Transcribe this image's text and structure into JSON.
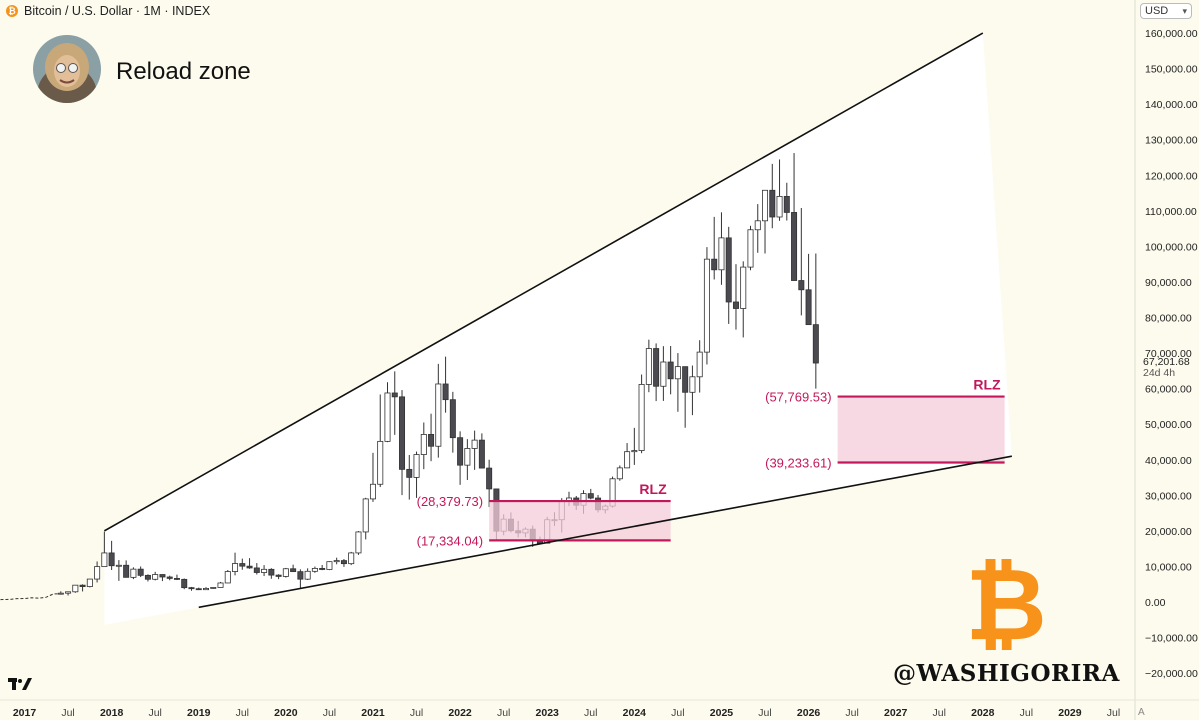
{
  "header": {
    "coin_glyph": "₿",
    "title": "Bitcoin / U.S. Dollar · 1M · INDEX"
  },
  "subtitle": "Reload zone",
  "avatar": {
    "icon": "profile-avatar"
  },
  "currency_selector": {
    "value": "USD"
  },
  "last_price": {
    "value": "67,201.68",
    "countdown": "24d 4h"
  },
  "watermark": {
    "handle": "@WASHIGORIRA",
    "logo": "bitcoin-logo"
  },
  "auto_scale_label": "A",
  "colors": {
    "background": "#fdfbee",
    "zone_fill": "#f4ccd9",
    "zone_line": "#c2185b",
    "zone_text": "#c2185b",
    "bull": "#ffffff",
    "bear": "#4a4a50",
    "logo": "#f7931a"
  },
  "chart_data": {
    "type": "candlestick",
    "title": "Bitcoin / U.S. Dollar · 1M · INDEX",
    "subtitle": "Reload zone",
    "ylim": [
      -25000,
      165000
    ],
    "xlim": [
      "2016-09",
      "2030-02"
    ],
    "y_ticks": [
      {
        "v": 160000,
        "label": "160,000.00"
      },
      {
        "v": 150000,
        "label": "150,000.00"
      },
      {
        "v": 140000,
        "label": "140,000.00"
      },
      {
        "v": 130000,
        "label": "130,000.00"
      },
      {
        "v": 120000,
        "label": "120,000.00"
      },
      {
        "v": 110000,
        "label": "110,000.00"
      },
      {
        "v": 100000,
        "label": "100,000.00"
      },
      {
        "v": 90000,
        "label": "90,000.00"
      },
      {
        "v": 80000,
        "label": "80,000.00"
      },
      {
        "v": 70000,
        "label": "70,000.00"
      },
      {
        "v": 60000,
        "label": "60,000.00"
      },
      {
        "v": 50000,
        "label": "50,000.00"
      },
      {
        "v": 40000,
        "label": "40,000.00"
      },
      {
        "v": 30000,
        "label": "30,000.00"
      },
      {
        "v": 20000,
        "label": "20,000.00"
      },
      {
        "v": 10000,
        "label": "10,000.00"
      },
      {
        "v": 0,
        "label": "0.00"
      },
      {
        "v": -10000,
        "label": "−10,000.00"
      },
      {
        "v": -20000,
        "label": "−20,000.00"
      }
    ],
    "x_ticks": [
      {
        "t": "2017-01",
        "label": "2017",
        "major": true
      },
      {
        "t": "2017-07",
        "label": "Jul",
        "major": false
      },
      {
        "t": "2018-01",
        "label": "2018",
        "major": true
      },
      {
        "t": "2018-07",
        "label": "Jul",
        "major": false
      },
      {
        "t": "2019-01",
        "label": "2019",
        "major": true
      },
      {
        "t": "2019-07",
        "label": "Jul",
        "major": false
      },
      {
        "t": "2020-01",
        "label": "2020",
        "major": true
      },
      {
        "t": "2020-07",
        "label": "Jul",
        "major": false
      },
      {
        "t": "2021-01",
        "label": "2021",
        "major": true
      },
      {
        "t": "2021-07",
        "label": "Jul",
        "major": false
      },
      {
        "t": "2022-01",
        "label": "2022",
        "major": true
      },
      {
        "t": "2022-07",
        "label": "Jul",
        "major": false
      },
      {
        "t": "2023-01",
        "label": "2023",
        "major": true
      },
      {
        "t": "2023-07",
        "label": "Jul",
        "major": false
      },
      {
        "t": "2024-01",
        "label": "2024",
        "major": true
      },
      {
        "t": "2024-07",
        "label": "Jul",
        "major": false
      },
      {
        "t": "2025-01",
        "label": "2025",
        "major": true
      },
      {
        "t": "2025-07",
        "label": "Jul",
        "major": false
      },
      {
        "t": "2026-01",
        "label": "2026",
        "major": true
      },
      {
        "t": "2026-07",
        "label": "Jul",
        "major": false
      },
      {
        "t": "2027-01",
        "label": "2027",
        "major": true
      },
      {
        "t": "2027-07",
        "label": "Jul",
        "major": false
      },
      {
        "t": "2028-01",
        "label": "2028",
        "major": true
      },
      {
        "t": "2028-07",
        "label": "Jul",
        "major": false
      },
      {
        "t": "2029-01",
        "label": "2029",
        "major": true
      },
      {
        "t": "2029-07",
        "label": "Jul",
        "major": false
      }
    ],
    "line_history": {
      "months": [
        "2016-09",
        "2016-10",
        "2016-11",
        "2016-12",
        "2017-01",
        "2017-02",
        "2017-03",
        "2017-04",
        "2017-05"
      ],
      "close": [
        600,
        700,
        740,
        960,
        970,
        1190,
        1080,
        1350,
        2300
      ]
    },
    "candles": {
      "months": [
        "2017-06",
        "2017-07",
        "2017-08",
        "2017-09",
        "2017-10",
        "2017-11",
        "2017-12",
        "2018-01",
        "2018-02",
        "2018-03",
        "2018-04",
        "2018-05",
        "2018-06",
        "2018-07",
        "2018-08",
        "2018-09",
        "2018-10",
        "2018-11",
        "2018-12",
        "2019-01",
        "2019-02",
        "2019-03",
        "2019-04",
        "2019-05",
        "2019-06",
        "2019-07",
        "2019-08",
        "2019-09",
        "2019-10",
        "2019-11",
        "2019-12",
        "2020-01",
        "2020-02",
        "2020-03",
        "2020-04",
        "2020-05",
        "2020-06",
        "2020-07",
        "2020-08",
        "2020-09",
        "2020-10",
        "2020-11",
        "2020-12",
        "2021-01",
        "2021-02",
        "2021-03",
        "2021-04",
        "2021-05",
        "2021-06",
        "2021-07",
        "2021-08",
        "2021-09",
        "2021-10",
        "2021-11",
        "2021-12",
        "2022-01",
        "2022-02",
        "2022-03",
        "2022-04",
        "2022-05",
        "2022-06",
        "2022-07",
        "2022-08",
        "2022-09",
        "2022-10",
        "2022-11",
        "2022-12",
        "2023-01",
        "2023-02",
        "2023-03",
        "2023-04",
        "2023-05",
        "2023-06",
        "2023-07",
        "2023-08",
        "2023-09",
        "2023-10",
        "2023-11",
        "2023-12",
        "2024-01",
        "2024-02",
        "2024-03",
        "2024-04",
        "2024-05",
        "2024-06",
        "2024-07",
        "2024-08",
        "2024-09",
        "2024-10",
        "2024-11",
        "2024-12",
        "2025-01",
        "2025-02",
        "2025-03",
        "2025-04",
        "2025-05",
        "2025-06",
        "2025-07",
        "2025-08",
        "2025-09",
        "2025-10",
        "2025-11",
        "2025-12",
        "2026-01",
        "2026-02"
      ],
      "open": [
        2300,
        2480,
        2870,
        4730,
        4340,
        6450,
        9950,
        13800,
        10200,
        10330,
        6930,
        9240,
        7490,
        6390,
        7730,
        7030,
        6630,
        6370,
        4040,
        3740,
        3460,
        3820,
        4100,
        5350,
        8570,
        10820,
        10080,
        9580,
        8290,
        9190,
        7560,
        7190,
        9350,
        8540,
        6420,
        8630,
        9450,
        9140,
        11340,
        11650,
        10780,
        13800,
        19700,
        28990,
        33110,
        45170,
        58780,
        57690,
        37300,
        35040,
        41460,
        47130,
        43800,
        61310,
        56900,
        46210,
        38480,
        43180,
        45520,
        37660,
        31800,
        19920,
        23300,
        20050,
        19430,
        20490,
        17160,
        16540,
        23140,
        23140,
        28460,
        29250,
        27220,
        30480,
        29230,
        25930,
        26970,
        34650,
        37720,
        42270,
        42590,
        61180,
        71280,
        60670,
        67490,
        62770,
        66190,
        58970,
        63330,
        70270,
        96410,
        93420,
        102400,
        84370,
        82540,
        94180,
        104680,
        107200,
        115780,
        108270,
        114060,
        109550,
        90400,
        87800,
        78000
      ],
      "high": [
        3000,
        2920,
        4750,
        4980,
        6470,
        11400,
        19780,
        17200,
        11790,
        11700,
        9750,
        9990,
        7790,
        8480,
        7760,
        7400,
        7690,
        6620,
        4230,
        4050,
        4190,
        4110,
        5640,
        9000,
        13880,
        12200,
        12330,
        10950,
        10370,
        9500,
        7810,
        9580,
        10500,
        9190,
        9470,
        9970,
        10400,
        11460,
        12470,
        12090,
        14090,
        19950,
        29300,
        41950,
        58360,
        61780,
        64860,
        59600,
        41330,
        42300,
        50480,
        52950,
        66970,
        69000,
        59100,
        47990,
        45800,
        48200,
        47420,
        40010,
        31900,
        24670,
        25200,
        22800,
        20990,
        21480,
        18400,
        23950,
        25250,
        29190,
        31000,
        29820,
        31430,
        31800,
        30080,
        27400,
        35270,
        38400,
        44700,
        48970,
        63970,
        73770,
        72720,
        71950,
        71990,
        70000,
        65100,
        66500,
        73620,
        99800,
        108300,
        109580,
        105500,
        95000,
        95800,
        105800,
        111900,
        110570,
        123200,
        124450,
        117900,
        126250,
        110800,
        97900,
        98000
      ],
      "low": [
        2080,
        1830,
        2580,
        2970,
        4110,
        5500,
        10400,
        9000,
        5940,
        7070,
        6430,
        7020,
        5770,
        6070,
        5880,
        6120,
        6180,
        3600,
        3160,
        3360,
        3380,
        3730,
        4090,
        5330,
        7500,
        9070,
        9330,
        7730,
        7300,
        6530,
        6430,
        6870,
        8470,
        3850,
        6190,
        8210,
        8950,
        8960,
        10600,
        9880,
        10380,
        13250,
        17600,
        28150,
        32330,
        44950,
        47000,
        30060,
        28800,
        29280,
        37350,
        39600,
        40600,
        53250,
        42000,
        32950,
        34320,
        37160,
        37700,
        26700,
        17600,
        18780,
        19560,
        18160,
        18190,
        15500,
        16280,
        16500,
        21400,
        19550,
        26970,
        25870,
        24800,
        28860,
        25170,
        24900,
        26560,
        34100,
        37640,
        38550,
        41850,
        59000,
        56500,
        56550,
        58400,
        53500,
        49000,
        52550,
        58900,
        66800,
        90700,
        89200,
        78200,
        76600,
        74400,
        93300,
        98200,
        98000,
        105100,
        107200,
        107270,
        102000,
        80600,
        83800,
        60000
      ],
      "close": [
        2480,
        2870,
        4730,
        4340,
        6450,
        9950,
        13800,
        10200,
        10330,
        6930,
        9240,
        7490,
        6390,
        7730,
        7030,
        6630,
        6370,
        4040,
        3740,
        3460,
        3820,
        4100,
        5350,
        8570,
        10820,
        10080,
        9580,
        8290,
        9190,
        7560,
        7190,
        9350,
        8540,
        6420,
        8630,
        9450,
        9140,
        11340,
        11650,
        10780,
        13800,
        19700,
        28990,
        33110,
        45170,
        58780,
        57690,
        37300,
        35040,
        41460,
        47130,
        43800,
        61310,
        56900,
        46210,
        38480,
        43180,
        45520,
        37660,
        31800,
        19920,
        23300,
        20050,
        19430,
        20490,
        17160,
        16540,
        23140,
        23140,
        28460,
        29250,
        27220,
        30480,
        29230,
        25930,
        26970,
        34650,
        37720,
        42270,
        42590,
        61180,
        71280,
        60670,
        67490,
        62770,
        66190,
        58970,
        63330,
        70270,
        96410,
        93420,
        102400,
        84370,
        82540,
        94180,
        104680,
        107200,
        115780,
        108270,
        114060,
        109550,
        90400,
        87800,
        78000,
        67201.68
      ]
    },
    "trendlines": [
      {
        "name": "upper-trendline",
        "points": [
          [
            "2017-12",
            20000
          ],
          [
            "2028-01",
            160000
          ]
        ]
      },
      {
        "name": "lower-trendline",
        "points": [
          [
            "2019-01",
            -1500
          ],
          [
            "2028-05",
            41000
          ]
        ]
      }
    ],
    "zones": [
      {
        "label": "RLZ",
        "start": "2022-05",
        "end": "2024-06",
        "top": 28379.73,
        "bottom": 17334.04,
        "top_label": "(28,379.73)",
        "bottom_label": "(17,334.04)"
      },
      {
        "label": "RLZ",
        "start": "2026-05",
        "end": "2028-04",
        "top": 57769.53,
        "bottom": 39233.61,
        "top_label": "(57,769.53)",
        "bottom_label": "(39,233.61)"
      }
    ]
  }
}
